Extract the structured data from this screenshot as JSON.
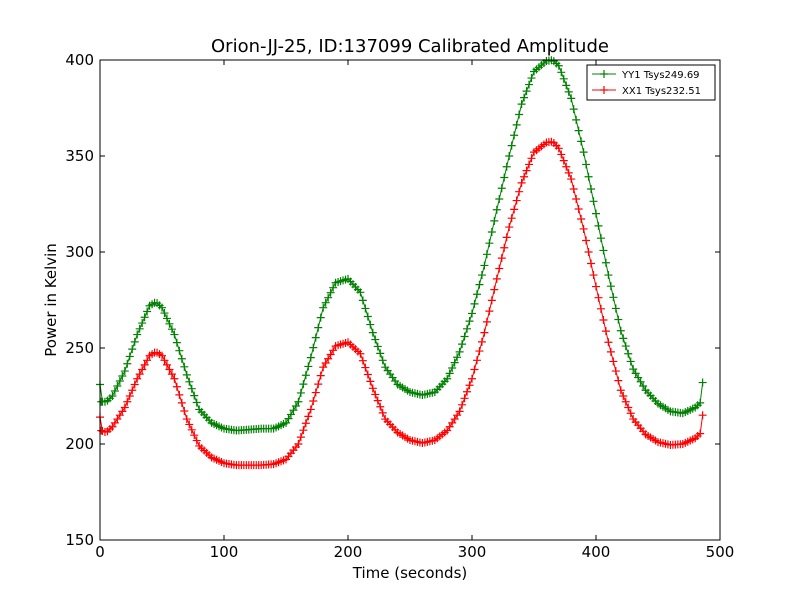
{
  "chart_data": {
    "type": "line",
    "title": "Orion-JJ-25, ID:137099 Calibrated Amplitude",
    "xlabel": "Time (seconds)",
    "ylabel": "Power in Kelvin",
    "xlim": [
      0,
      500
    ],
    "ylim": [
      150,
      400
    ],
    "xticks": [
      "0",
      "100",
      "200",
      "300",
      "400",
      "500"
    ],
    "yticks": [
      "150",
      "200",
      "250",
      "300",
      "350",
      "400"
    ],
    "grid": false,
    "legend_position": "top-right",
    "marker": "+",
    "sample_interval": 2,
    "series": [
      {
        "name": "YY1 Tsys249.69",
        "color": "#008000",
        "points": [
          [
            0,
            231
          ],
          [
            1,
            222
          ],
          [
            5,
            222
          ],
          [
            10,
            225
          ],
          [
            20,
            238
          ],
          [
            30,
            257
          ],
          [
            40,
            272
          ],
          [
            45,
            274
          ],
          [
            50,
            271
          ],
          [
            60,
            257
          ],
          [
            70,
            236
          ],
          [
            80,
            218
          ],
          [
            90,
            211
          ],
          [
            100,
            208
          ],
          [
            110,
            207
          ],
          [
            120,
            207.5
          ],
          [
            130,
            208
          ],
          [
            140,
            208
          ],
          [
            150,
            211
          ],
          [
            160,
            222
          ],
          [
            170,
            245
          ],
          [
            180,
            271
          ],
          [
            190,
            284
          ],
          [
            200,
            286
          ],
          [
            210,
            279
          ],
          [
            220,
            258
          ],
          [
            230,
            240
          ],
          [
            240,
            231
          ],
          [
            250,
            227
          ],
          [
            260,
            225.5
          ],
          [
            270,
            227
          ],
          [
            280,
            234
          ],
          [
            290,
            248
          ],
          [
            300,
            268
          ],
          [
            310,
            293
          ],
          [
            320,
            322
          ],
          [
            330,
            350
          ],
          [
            340,
            377
          ],
          [
            350,
            394
          ],
          [
            360,
            399.5
          ],
          [
            365,
            400
          ],
          [
            370,
            397
          ],
          [
            380,
            380
          ],
          [
            390,
            352
          ],
          [
            400,
            320
          ],
          [
            410,
            288
          ],
          [
            420,
            259
          ],
          [
            430,
            239
          ],
          [
            440,
            228
          ],
          [
            450,
            221
          ],
          [
            460,
            217
          ],
          [
            470,
            216
          ],
          [
            480,
            219
          ],
          [
            485,
            222
          ],
          [
            486,
            232
          ]
        ]
      },
      {
        "name": "XX1 Tsys232.51",
        "color": "#ff0000",
        "points": [
          [
            0,
            214
          ],
          [
            1,
            207
          ],
          [
            5,
            206
          ],
          [
            10,
            209
          ],
          [
            20,
            219
          ],
          [
            30,
            234
          ],
          [
            40,
            246
          ],
          [
            45,
            248
          ],
          [
            50,
            246
          ],
          [
            60,
            234
          ],
          [
            70,
            213
          ],
          [
            80,
            199
          ],
          [
            90,
            193
          ],
          [
            100,
            190
          ],
          [
            110,
            189
          ],
          [
            120,
            189
          ],
          [
            130,
            189
          ],
          [
            140,
            189.5
          ],
          [
            150,
            192
          ],
          [
            160,
            200
          ],
          [
            170,
            218
          ],
          [
            180,
            240
          ],
          [
            190,
            251
          ],
          [
            200,
            253
          ],
          [
            210,
            247
          ],
          [
            220,
            229
          ],
          [
            230,
            213
          ],
          [
            240,
            206
          ],
          [
            250,
            202
          ],
          [
            260,
            200.5
          ],
          [
            270,
            202
          ],
          [
            280,
            207
          ],
          [
            290,
            217
          ],
          [
            300,
            234
          ],
          [
            310,
            258
          ],
          [
            320,
            286
          ],
          [
            330,
            313
          ],
          [
            340,
            336
          ],
          [
            350,
            352
          ],
          [
            360,
            357
          ],
          [
            365,
            357.5
          ],
          [
            370,
            354
          ],
          [
            380,
            338
          ],
          [
            390,
            312
          ],
          [
            400,
            282
          ],
          [
            410,
            253
          ],
          [
            420,
            228
          ],
          [
            430,
            213
          ],
          [
            440,
            205
          ],
          [
            450,
            201
          ],
          [
            460,
            199.5
          ],
          [
            470,
            200
          ],
          [
            480,
            203
          ],
          [
            485,
            206
          ],
          [
            486,
            215
          ]
        ]
      }
    ]
  }
}
